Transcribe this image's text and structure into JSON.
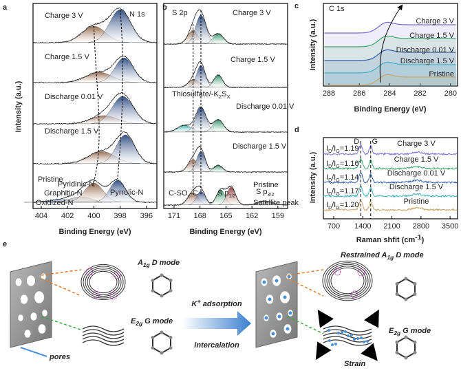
{
  "panels": {
    "a": {
      "letter": "a",
      "title": "N 1s",
      "y_label": "Intensity (a.u.)",
      "x_label": "Binding Energy (eV)",
      "x_ticks": [
        404,
        402,
        400,
        398,
        396
      ],
      "traces": [
        "Charge 3 V",
        "Charge 1.5 V",
        "Discharge 0.01 V",
        "Discharge 1.5 V",
        "Pristine"
      ],
      "peaks": [
        "Pyridinic-N",
        "Graphitic-N",
        "Pyrrolic-N",
        "Oxidized-N"
      ]
    },
    "b": {
      "letter": "b",
      "title": "S 2p",
      "x_label": "Binding Energy (eV)",
      "x_ticks": [
        171,
        168,
        165,
        162,
        159
      ],
      "traces": [
        "Charge 3 V",
        "Charge 1.5 V",
        "Discharge 0.01 V",
        "Discharge 1.5 V",
        "Pristine"
      ],
      "thiosulfate": [
        "Thiosulfate/-K",
        "2",
        "S",
        "X"
      ],
      "peaks": [
        [
          "C-SO",
          "x",
          "-C"
        ],
        [
          "S p",
          "1/2"
        ],
        [
          "S p",
          "3/2"
        ]
      ],
      "satellite": "Satellite peak"
    },
    "c": {
      "letter": "c",
      "title": "C 1s",
      "y_label": "Intensity (a.u.)",
      "x_label": "Binding Energy (eV)",
      "x_ticks": [
        288,
        286,
        284,
        282,
        280
      ],
      "traces": [
        "Charge 3 V",
        "Charge 1.5 V",
        "Discharge 0.01 V",
        "Discharge 1.5 V",
        "Pristine"
      ]
    },
    "d": {
      "letter": "d",
      "y_label": "Intensity (a.u.)",
      "x_label": [
        "Raman shfit (cm",
        "-1",
        ")"
      ],
      "x_ticks": [
        700,
        1400,
        2100,
        2800,
        3500
      ],
      "bands": [
        "D",
        "G"
      ],
      "ratio_parts": [
        "I",
        "D",
        "/I",
        "G",
        "="
      ],
      "ratios": [
        "1.19",
        "1.16",
        "1.14",
        "1.17",
        "1.20"
      ],
      "traces": [
        "Charge 3 V",
        "Charge 1.5 V",
        "Discharge 0.01 V",
        "Discharge 1.5 V",
        "Pristine"
      ]
    },
    "e": {
      "letter": "e",
      "a1g": [
        "A",
        "1g",
        " D mode"
      ],
      "restrained": [
        "Restrained A",
        "1g",
        " D mode"
      ],
      "e2g_left": [
        "E",
        "2g",
        " G mode"
      ],
      "e2g_right": [
        "E",
        "2g",
        " G mode"
      ],
      "adsorption": [
        "K",
        "+",
        " adsorption"
      ],
      "intercalation": "intercalation",
      "pores": "pores",
      "strain": "Strain"
    }
  }
}
